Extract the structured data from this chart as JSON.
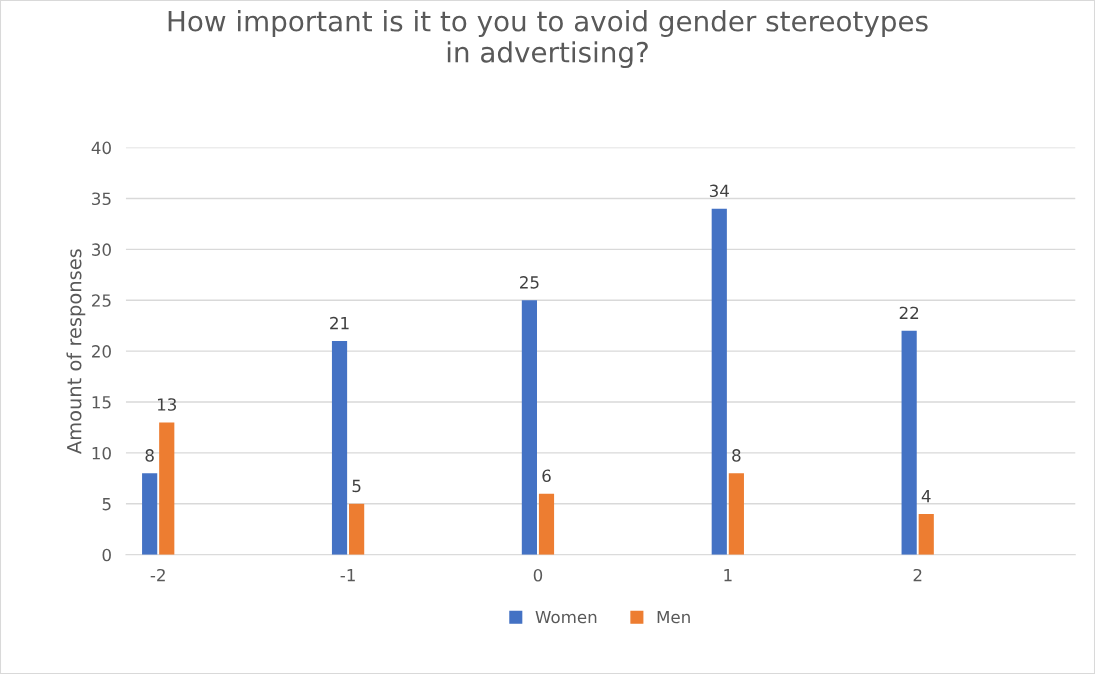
{
  "chart_data": {
    "type": "bar",
    "title": "How important is it to you to avoid gender stereotypes\nin advertising?",
    "ylabel": "Amount of responses",
    "categories": [
      "-2",
      "-1",
      "0",
      "1",
      "2"
    ],
    "series": [
      {
        "name": "Women",
        "color": "#4472c4",
        "values": [
          8,
          21,
          25,
          34,
          22
        ]
      },
      {
        "name": "Men",
        "color": "#ed7d31",
        "values": [
          13,
          5,
          6,
          8,
          4
        ]
      }
    ],
    "ylim": [
      0,
      40
    ],
    "yticks": [
      0,
      5,
      10,
      15,
      20,
      25,
      30,
      35,
      40
    ],
    "grid": "y",
    "legend": "bottom",
    "data_labels": true
  }
}
